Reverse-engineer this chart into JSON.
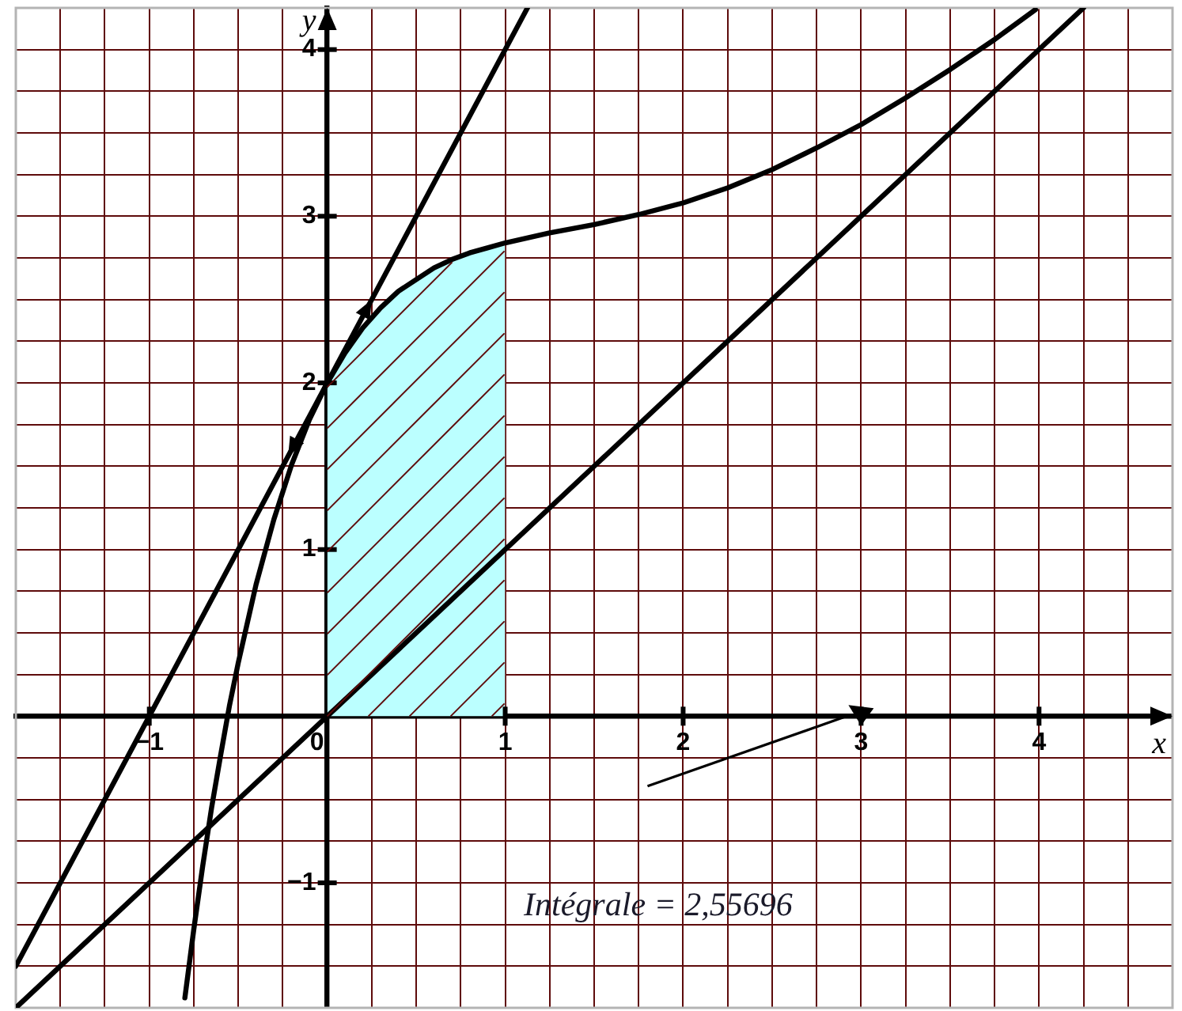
{
  "chart_data": {
    "type": "line",
    "xlabel": "x",
    "ylabel": "y",
    "xlim": [
      -1.75,
      4.75
    ],
    "ylim": [
      -1.75,
      4.25
    ],
    "xticks": [
      {
        "value": -1.5,
        "label": null
      },
      {
        "value": -1.25,
        "label": null
      },
      {
        "value": -1,
        "label": "−1"
      },
      {
        "value": -0.75,
        "label": null
      },
      {
        "value": -0.5,
        "label": null
      },
      {
        "value": -0.25,
        "label": null
      },
      0,
      {
        "value": 0.25,
        "label": null
      },
      {
        "value": 0.5,
        "label": null
      },
      {
        "value": 0.75,
        "label": null
      },
      1,
      {
        "value": 1.25,
        "label": null
      },
      {
        "value": 1.5,
        "label": null
      },
      {
        "value": 1.75,
        "label": null
      },
      2,
      {
        "value": 2.25,
        "label": null
      },
      {
        "value": 2.5,
        "label": null
      },
      {
        "value": 2.75,
        "label": null
      },
      3,
      {
        "value": 3.25,
        "label": null
      },
      {
        "value": 3.5,
        "label": null
      },
      {
        "value": 3.75,
        "label": null
      },
      4,
      {
        "value": 4.25,
        "label": null
      },
      {
        "value": 4.5,
        "label": null
      }
    ],
    "yticks": [
      {
        "value": -1.5,
        "label": null
      },
      {
        "value": -1.25,
        "label": null
      },
      {
        "value": -1,
        "label": "−1"
      },
      {
        "value": -0.75,
        "label": null
      },
      {
        "value": -0.5,
        "label": null
      },
      {
        "value": -0.25,
        "label": null
      },
      {
        "value": 0,
        "label": null
      },
      {
        "value": 0.25,
        "label": null
      },
      {
        "value": 0.5,
        "label": null
      },
      {
        "value": 0.75,
        "label": null
      },
      1,
      {
        "value": 1.25,
        "label": null
      },
      {
        "value": 1.5,
        "label": null
      },
      {
        "value": 1.75,
        "label": null
      },
      2,
      {
        "value": 2.25,
        "label": null
      },
      {
        "value": 2.5,
        "label": null
      },
      {
        "value": 2.75,
        "label": null
      },
      3,
      {
        "value": 3.25,
        "label": null
      },
      {
        "value": 3.5,
        "label": null
      },
      {
        "value": 3.75,
        "label": null
      },
      4
    ],
    "grid": true,
    "marker": "none",
    "line_style": "solid",
    "annotations": [
      "Intégrale = 2,55696"
    ],
    "series": [
      {
        "type": "area",
        "color": "#bbffff",
        "x": [
          0,
          0.1,
          0.2,
          0.3,
          0.4,
          0.5,
          0.6,
          0.7,
          0.8,
          0.9,
          1
        ],
        "values": [
          2,
          2.18,
          2.33,
          2.45,
          2.55,
          2.62,
          2.69,
          2.74,
          2.78,
          2.81,
          2.84
        ]
      },
      {
        "color": "#000000",
        "x": [
          -0.8,
          -0.75,
          -0.7,
          -0.65,
          -0.6,
          -0.55,
          -0.5,
          -0.4,
          -0.3,
          -0.2,
          -0.1,
          0,
          0.1,
          0.2,
          0.3,
          0.4,
          0.5,
          0.6,
          0.7,
          0.8,
          0.9,
          1,
          1.25,
          1.5,
          1.75,
          2,
          2.25,
          2.5,
          2.75,
          3,
          3.25,
          3.5,
          3.75,
          3.98
        ],
        "values": [
          -1.69,
          -1.28,
          -0.9,
          -0.55,
          -0.24,
          0.06,
          0.32,
          0.79,
          1.18,
          1.51,
          1.78,
          2,
          2.18,
          2.33,
          2.45,
          2.55,
          2.62,
          2.69,
          2.74,
          2.78,
          2.81,
          2.84,
          2.9,
          2.95,
          3.01,
          3.08,
          3.17,
          3.28,
          3.41,
          3.55,
          3.71,
          3.88,
          4.06,
          4.24
        ]
      },
      {
        "color": "#000000",
        "x": [
          -1.75,
          1.125
        ],
        "values": [
          -1.5,
          4.25
        ]
      },
      {
        "color": "#000000",
        "x": [
          -1.75,
          4.25
        ],
        "values": [
          -1.75,
          4.25
        ]
      }
    ]
  }
}
